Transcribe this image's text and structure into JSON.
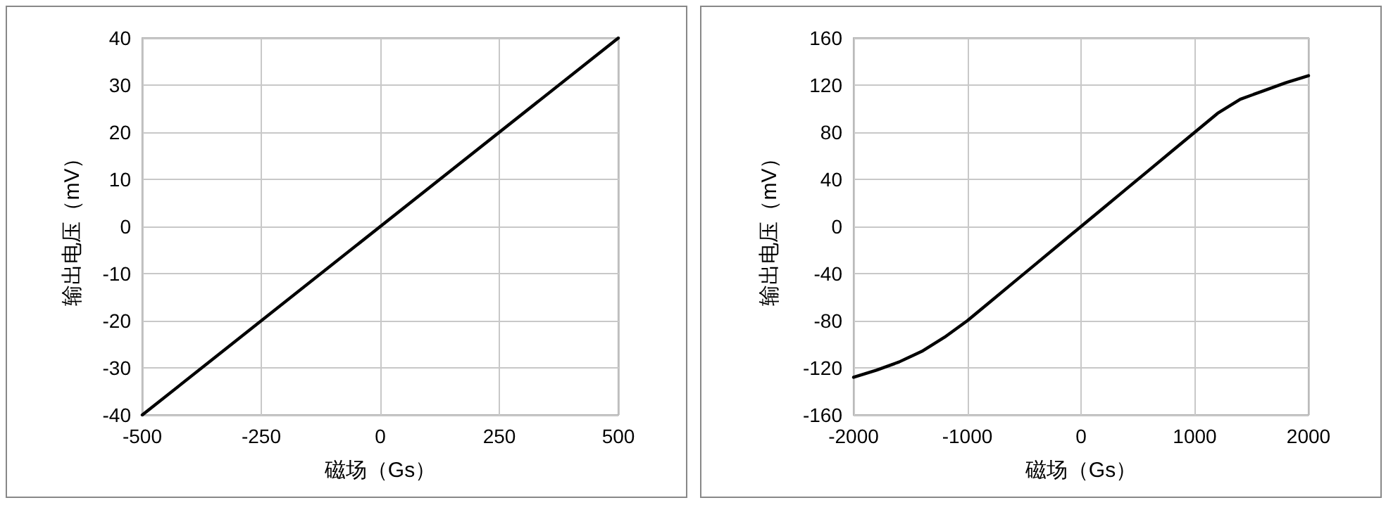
{
  "chart_data": [
    {
      "type": "line",
      "xlabel": "磁场（Gs）",
      "ylabel": "输出电压（mV）",
      "x": [
        -500,
        500
      ],
      "series": [
        {
          "color": "#000000",
          "values": [
            -40,
            40
          ]
        }
      ],
      "xlim": [
        -500,
        500
      ],
      "xticks": [
        -500,
        -250,
        0,
        250,
        500
      ],
      "ylim": [
        -40,
        40
      ],
      "yticks": [
        -40,
        -30,
        -20,
        -10,
        0,
        10,
        20,
        30,
        40
      ],
      "grid": true,
      "marker": "none",
      "line_style": "solid"
    },
    {
      "type": "line",
      "xlabel": "磁场（Gs）",
      "ylabel": "输出电压（mV）",
      "x": [
        -2000,
        -1800,
        -1600,
        -1400,
        -1200,
        -1000,
        -800,
        -600,
        -400,
        -200,
        0,
        200,
        400,
        600,
        800,
        1000,
        1200,
        1400,
        1600,
        1800,
        2000
      ],
      "series": [
        {
          "color": "#000000",
          "values": [
            -128,
            -122,
            -115,
            -106,
            -94,
            -80,
            -64,
            -48,
            -32,
            -16,
            0,
            16,
            32,
            48,
            64,
            80,
            96,
            108,
            115,
            122,
            128
          ]
        }
      ],
      "xlim": [
        -2000,
        2000
      ],
      "xticks": [
        -2000,
        -1000,
        0,
        1000,
        2000
      ],
      "ylim": [
        -160,
        160
      ],
      "yticks": [
        -160,
        -120,
        -80,
        -40,
        0,
        40,
        80,
        120,
        160
      ],
      "grid": true,
      "marker": "none",
      "line_style": "solid"
    }
  ]
}
